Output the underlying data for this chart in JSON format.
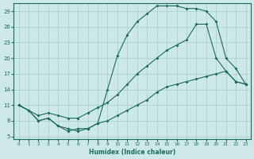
{
  "background_color": "#cde8e8",
  "grid_color": "#a8cccc",
  "line_color": "#1a6b5a",
  "xlabel": "Humidex (Indice chaleur)",
  "xlim": [
    -0.5,
    23.5
  ],
  "ylim": [
    4.5,
    30.5
  ],
  "yticks": [
    5,
    8,
    11,
    14,
    17,
    20,
    23,
    26,
    29
  ],
  "xticks": [
    0,
    1,
    2,
    3,
    4,
    5,
    6,
    7,
    8,
    9,
    10,
    11,
    12,
    13,
    14,
    15,
    16,
    17,
    18,
    19,
    20,
    21,
    22,
    23
  ],
  "curve1_x": [
    0,
    1,
    2,
    3,
    4,
    5,
    6,
    7,
    8,
    9,
    10,
    11,
    12,
    13,
    14,
    15,
    16,
    17,
    18,
    19,
    20,
    21,
    22,
    23
  ],
  "curve1_y": [
    11,
    10,
    8.0,
    8.5,
    7.0,
    6.0,
    6.5,
    6.5,
    7.5,
    14.0,
    20.5,
    24.5,
    27.0,
    28.5,
    30.0,
    30.0,
    30.0,
    29.5,
    29.5,
    29.0,
    27.0,
    20.0,
    18.0,
    15.0
  ],
  "curve2_x": [
    0,
    2,
    3,
    4,
    5,
    6,
    7,
    8,
    9,
    10,
    11,
    12,
    13,
    14,
    15,
    16,
    17,
    18,
    19,
    20,
    21,
    22,
    23
  ],
  "curve2_y": [
    11,
    9.0,
    9.5,
    9.0,
    8.5,
    8.5,
    9.5,
    10.5,
    11.5,
    13.0,
    15.0,
    17.0,
    18.5,
    20.0,
    21.5,
    22.5,
    23.5,
    26.5,
    26.5,
    20.0,
    17.5,
    15.5,
    15.0
  ],
  "curve3_x": [
    0,
    1,
    2,
    3,
    4,
    5,
    6,
    7,
    8,
    9,
    10,
    11,
    12,
    13,
    14,
    15,
    16,
    17,
    18,
    19,
    20,
    21,
    22,
    23
  ],
  "curve3_y": [
    11,
    10.0,
    8.0,
    8.5,
    7.0,
    6.5,
    6.0,
    6.5,
    7.5,
    8.0,
    9.0,
    10.0,
    11.0,
    12.0,
    13.5,
    14.5,
    15.0,
    15.5,
    16.0,
    16.5,
    17.0,
    17.5,
    15.5,
    15.0
  ]
}
